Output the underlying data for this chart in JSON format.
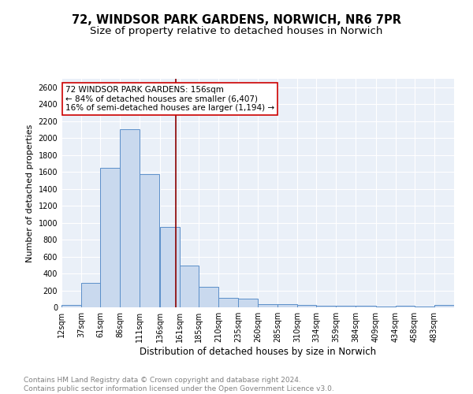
{
  "title": "72, WINDSOR PARK GARDENS, NORWICH, NR6 7PR",
  "subtitle": "Size of property relative to detached houses in Norwich",
  "xlabel": "Distribution of detached houses by size in Norwich",
  "ylabel": "Number of detached properties",
  "bar_color": "#c9d9ee",
  "bar_edge_color": "#5b8fc9",
  "background_color": "#eaf0f8",
  "grid_color": "white",
  "vline_x": 156,
  "vline_color": "#8b0000",
  "annotation_text": "72 WINDSOR PARK GARDENS: 156sqm\n← 84% of detached houses are smaller (6,407)\n16% of semi-detached houses are larger (1,194) →",
  "annotation_box_color": "white",
  "annotation_box_edge": "#cc0000",
  "bins": [
    12,
    37,
    61,
    86,
    111,
    136,
    161,
    185,
    210,
    235,
    260,
    285,
    310,
    334,
    359,
    384,
    409,
    434,
    458,
    483,
    508
  ],
  "counts": [
    25,
    290,
    1650,
    2100,
    1570,
    950,
    490,
    240,
    110,
    100,
    40,
    35,
    25,
    20,
    20,
    20,
    5,
    20,
    5,
    25
  ],
  "ylim": [
    0,
    2700
  ],
  "yticks": [
    0,
    200,
    400,
    600,
    800,
    1000,
    1200,
    1400,
    1600,
    1800,
    2000,
    2200,
    2400,
    2600
  ],
  "footer_text": "Contains HM Land Registry data © Crown copyright and database right 2024.\nContains public sector information licensed under the Open Government Licence v3.0.",
  "title_fontsize": 10.5,
  "subtitle_fontsize": 9.5,
  "xlabel_fontsize": 8.5,
  "ylabel_fontsize": 8,
  "tick_fontsize": 7,
  "footer_fontsize": 6.5,
  "annotation_fontsize": 7.5
}
